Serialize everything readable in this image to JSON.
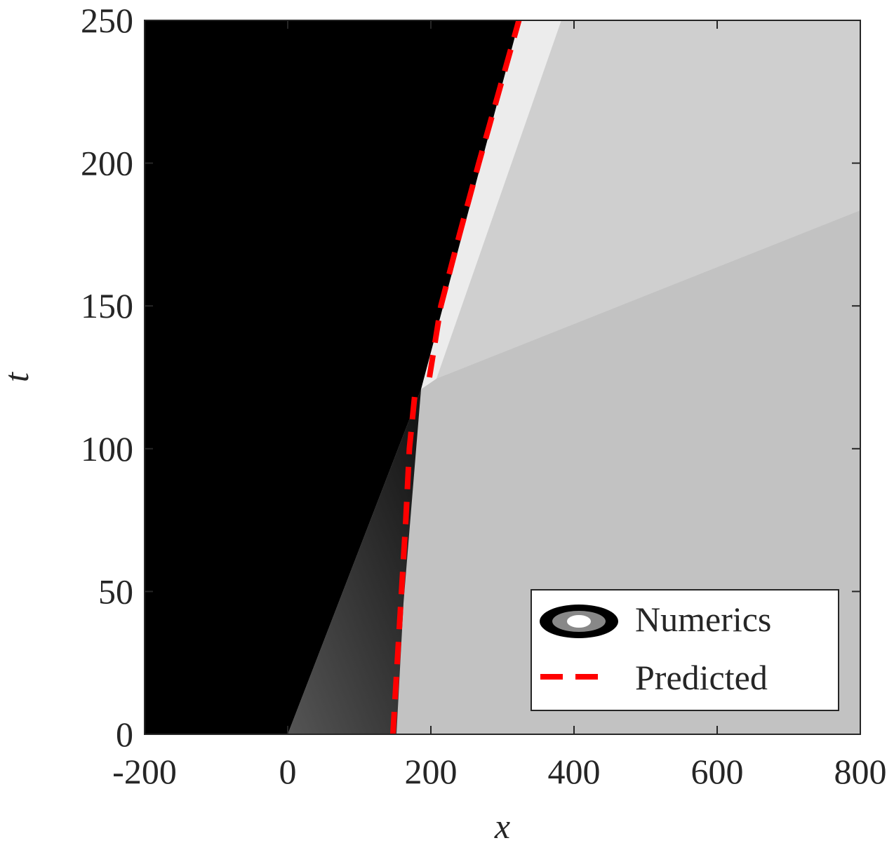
{
  "chart_data": {
    "type": "line",
    "x_label": "x",
    "y_label": "t",
    "xlim": [
      -200,
      800
    ],
    "xticks": [
      -200,
      0,
      200,
      400,
      600,
      800
    ],
    "ylim": [
      0,
      250
    ],
    "yticks": [
      0,
      50,
      100,
      150,
      200,
      250
    ],
    "legend": "lower right",
    "series": [
      {
        "name": "Numerics",
        "colormap": "gray"
      },
      {
        "name": "Predicted",
        "color": "#ff0000",
        "x": [
          147,
          153,
          159,
          165,
          170,
          178,
          null,
          198,
          214,
          240,
          267,
          295,
          323
        ],
        "values": [
          0,
          25,
          50,
          75,
          100,
          120,
          null,
          125,
          150,
          175,
          200,
          225,
          250
        ]
      }
    ]
  }
}
